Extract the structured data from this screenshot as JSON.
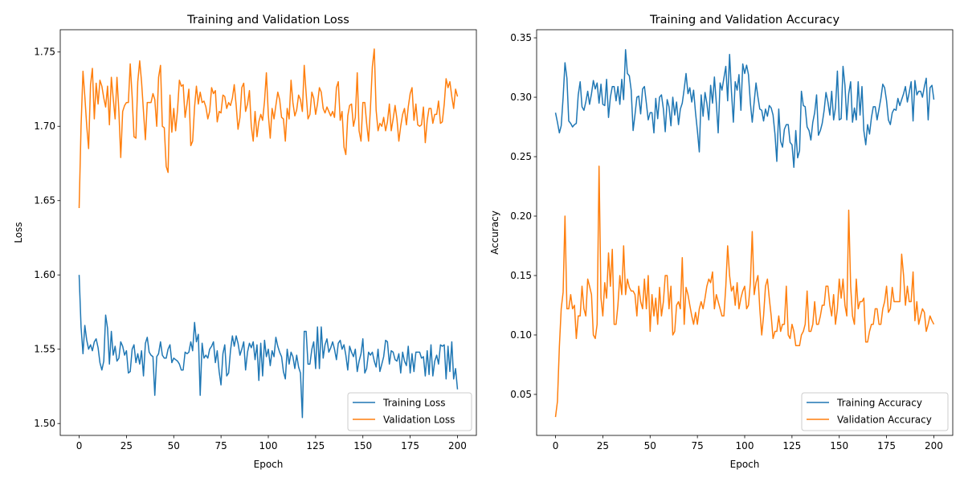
{
  "chart_data": [
    {
      "type": "line",
      "title": "Training and Validation Loss",
      "xlabel": "Epoch",
      "ylabel": "Loss",
      "xlim": [
        -10,
        210
      ],
      "ylim": [
        1.492,
        1.765
      ],
      "xticks": [
        0,
        25,
        50,
        75,
        100,
        125,
        150,
        175,
        200
      ],
      "yticks": [
        1.5,
        1.55,
        1.6,
        1.65,
        1.7,
        1.75
      ],
      "ytick_labels": [
        "1.50",
        "1.55",
        "1.60",
        "1.65",
        "1.70",
        "1.75"
      ],
      "legend": "lower-right",
      "grid": false,
      "series": [
        {
          "name": "Training Loss",
          "color": "#1f77b4",
          "values": [
            1.6,
            1.565,
            1.547,
            1.566,
            1.556,
            1.55,
            1.553,
            1.549,
            1.555,
            1.557,
            1.551,
            1.541,
            1.536,
            1.542,
            1.573,
            1.564,
            1.54,
            1.562,
            1.546,
            1.552,
            1.542,
            1.544,
            1.555,
            1.552,
            1.546,
            1.549,
            1.534,
            1.535,
            1.55,
            1.553,
            1.541,
            1.547,
            1.54,
            1.549,
            1.532,
            1.554,
            1.558,
            1.548,
            1.546,
            1.545,
            1.519,
            1.545,
            1.547,
            1.555,
            1.546,
            1.544,
            1.544,
            1.55,
            1.553,
            1.541,
            1.544,
            1.543,
            1.542,
            1.54,
            1.536,
            1.536,
            1.548,
            1.547,
            1.548,
            1.555,
            1.549,
            1.568,
            1.555,
            1.56,
            1.519,
            1.554,
            1.544,
            1.546,
            1.544,
            1.55,
            1.552,
            1.555,
            1.541,
            1.549,
            1.535,
            1.526,
            1.547,
            1.553,
            1.532,
            1.534,
            1.549,
            1.559,
            1.552,
            1.559,
            1.554,
            1.546,
            1.55,
            1.555,
            1.536,
            1.548,
            1.554,
            1.551,
            1.555,
            1.543,
            1.553,
            1.529,
            1.554,
            1.532,
            1.556,
            1.545,
            1.55,
            1.539,
            1.549,
            1.545,
            1.558,
            1.552,
            1.548,
            1.545,
            1.535,
            1.53,
            1.55,
            1.54,
            1.548,
            1.545,
            1.537,
            1.546,
            1.538,
            1.534,
            1.504,
            1.562,
            1.562,
            1.54,
            1.54,
            1.55,
            1.555,
            1.537,
            1.565,
            1.537,
            1.565,
            1.544,
            1.553,
            1.557,
            1.548,
            1.551,
            1.555,
            1.55,
            1.543,
            1.554,
            1.556,
            1.55,
            1.553,
            1.546,
            1.536,
            1.552,
            1.548,
            1.545,
            1.55,
            1.535,
            1.542,
            1.547,
            1.557,
            1.534,
            1.537,
            1.548,
            1.546,
            1.548,
            1.542,
            1.538,
            1.55,
            1.535,
            1.54,
            1.545,
            1.556,
            1.555,
            1.54,
            1.549,
            1.548,
            1.543,
            1.542,
            1.547,
            1.534,
            1.548,
            1.542,
            1.539,
            1.552,
            1.534,
            1.547,
            1.535,
            1.548,
            1.548,
            1.548,
            1.544,
            1.545,
            1.532,
            1.549,
            1.533,
            1.553,
            1.532,
            1.542,
            1.546,
            1.54,
            1.553,
            1.552,
            1.553,
            1.53,
            1.552,
            1.535,
            1.555,
            1.53,
            1.537,
            1.523
          ]
        },
        {
          "name": "Validation Loss",
          "color": "#ff7f0e",
          "values": [
            1.645,
            1.7,
            1.737,
            1.72,
            1.7,
            1.685,
            1.728,
            1.739,
            1.705,
            1.729,
            1.715,
            1.731,
            1.727,
            1.719,
            1.713,
            1.727,
            1.701,
            1.733,
            1.719,
            1.705,
            1.733,
            1.71,
            1.679,
            1.71,
            1.714,
            1.716,
            1.716,
            1.742,
            1.72,
            1.693,
            1.692,
            1.73,
            1.744,
            1.73,
            1.71,
            1.691,
            1.716,
            1.716,
            1.716,
            1.722,
            1.718,
            1.7,
            1.733,
            1.741,
            1.7,
            1.699,
            1.673,
            1.669,
            1.721,
            1.696,
            1.712,
            1.697,
            1.711,
            1.731,
            1.727,
            1.728,
            1.706,
            1.715,
            1.725,
            1.687,
            1.69,
            1.713,
            1.727,
            1.715,
            1.723,
            1.716,
            1.717,
            1.713,
            1.705,
            1.71,
            1.726,
            1.722,
            1.724,
            1.703,
            1.71,
            1.709,
            1.721,
            1.72,
            1.712,
            1.716,
            1.714,
            1.719,
            1.728,
            1.714,
            1.698,
            1.706,
            1.726,
            1.729,
            1.71,
            1.715,
            1.724,
            1.7,
            1.69,
            1.71,
            1.693,
            1.703,
            1.708,
            1.704,
            1.717,
            1.736,
            1.708,
            1.692,
            1.712,
            1.705,
            1.714,
            1.723,
            1.718,
            1.706,
            1.705,
            1.69,
            1.712,
            1.705,
            1.731,
            1.716,
            1.707,
            1.711,
            1.721,
            1.718,
            1.71,
            1.741,
            1.722,
            1.705,
            1.708,
            1.723,
            1.719,
            1.708,
            1.715,
            1.726,
            1.723,
            1.712,
            1.709,
            1.713,
            1.71,
            1.707,
            1.71,
            1.706,
            1.726,
            1.73,
            1.704,
            1.71,
            1.686,
            1.681,
            1.707,
            1.714,
            1.715,
            1.7,
            1.706,
            1.736,
            1.697,
            1.69,
            1.716,
            1.716,
            1.702,
            1.69,
            1.712,
            1.74,
            1.752,
            1.711,
            1.697,
            1.702,
            1.7,
            1.706,
            1.697,
            1.703,
            1.715,
            1.697,
            1.705,
            1.714,
            1.705,
            1.69,
            1.7,
            1.708,
            1.712,
            1.701,
            1.713,
            1.722,
            1.726,
            1.704,
            1.715,
            1.701,
            1.7,
            1.701,
            1.713,
            1.689,
            1.704,
            1.712,
            1.712,
            1.702,
            1.708,
            1.708,
            1.717,
            1.702,
            1.703,
            1.715,
            1.732,
            1.726,
            1.73,
            1.72,
            1.712,
            1.725,
            1.72
          ]
        }
      ]
    },
    {
      "type": "line",
      "title": "Training and Validation Accuracy",
      "xlabel": "Epoch",
      "ylabel": "Accuracy",
      "xlim": [
        -10,
        210
      ],
      "ylim": [
        0.0155,
        0.3568
      ],
      "xticks": [
        0,
        25,
        50,
        75,
        100,
        125,
        150,
        175,
        200
      ],
      "yticks": [
        0.05,
        0.1,
        0.15,
        0.2,
        0.25,
        0.3,
        0.35
      ],
      "ytick_labels": [
        "0.05",
        "0.10",
        "0.15",
        "0.20",
        "0.25",
        "0.30",
        "0.35"
      ],
      "legend": "lower-right",
      "grid": false,
      "series": [
        {
          "name": "Training Accuracy",
          "color": "#1f77b4",
          "values": [
            0.287,
            0.279,
            0.27,
            0.276,
            0.3,
            0.329,
            0.316,
            0.28,
            0.278,
            0.275,
            0.277,
            0.278,
            0.302,
            0.313,
            0.292,
            0.289,
            0.296,
            0.305,
            0.294,
            0.303,
            0.314,
            0.307,
            0.312,
            0.295,
            0.311,
            0.294,
            0.293,
            0.315,
            0.283,
            0.3,
            0.309,
            0.309,
            0.297,
            0.309,
            0.294,
            0.315,
            0.298,
            0.34,
            0.32,
            0.318,
            0.306,
            0.272,
            0.285,
            0.3,
            0.301,
            0.286,
            0.307,
            0.309,
            0.295,
            0.281,
            0.287,
            0.287,
            0.27,
            0.299,
            0.282,
            0.3,
            0.302,
            0.29,
            0.271,
            0.298,
            0.292,
            0.276,
            0.3,
            0.285,
            0.296,
            0.277,
            0.29,
            0.295,
            0.307,
            0.32,
            0.303,
            0.308,
            0.296,
            0.306,
            0.287,
            0.272,
            0.254,
            0.302,
            0.284,
            0.304,
            0.295,
            0.281,
            0.31,
            0.295,
            0.317,
            0.295,
            0.27,
            0.312,
            0.306,
            0.316,
            0.326,
            0.297,
            0.336,
            0.305,
            0.279,
            0.313,
            0.306,
            0.319,
            0.289,
            0.328,
            0.32,
            0.327,
            0.319,
            0.295,
            0.279,
            0.296,
            0.312,
            0.3,
            0.29,
            0.289,
            0.28,
            0.29,
            0.284,
            0.293,
            0.291,
            0.285,
            0.269,
            0.246,
            0.29,
            0.263,
            0.258,
            0.273,
            0.277,
            0.277,
            0.262,
            0.26,
            0.241,
            0.272,
            0.249,
            0.255,
            0.305,
            0.293,
            0.292,
            0.275,
            0.272,
            0.264,
            0.279,
            0.287,
            0.302,
            0.268,
            0.272,
            0.278,
            0.289,
            0.304,
            0.296,
            0.285,
            0.305,
            0.281,
            0.291,
            0.322,
            0.281,
            0.282,
            0.326,
            0.31,
            0.281,
            0.303,
            0.313,
            0.279,
            0.291,
            0.281,
            0.313,
            0.285,
            0.309,
            0.272,
            0.26,
            0.277,
            0.269,
            0.283,
            0.292,
            0.292,
            0.281,
            0.29,
            0.299,
            0.311,
            0.308,
            0.297,
            0.281,
            0.277,
            0.287,
            0.29,
            0.289,
            0.299,
            0.293,
            0.298,
            0.303,
            0.309,
            0.296,
            0.304,
            0.313,
            0.28,
            0.314,
            0.302,
            0.305,
            0.305,
            0.3,
            0.309,
            0.316,
            0.281,
            0.308,
            0.31,
            0.298
          ]
        },
        {
          "name": "Validation Accuracy",
          "color": "#ff7f0e",
          "values": [
            0.031,
            0.044,
            0.09,
            0.122,
            0.136,
            0.2,
            0.122,
            0.122,
            0.134,
            0.122,
            0.125,
            0.097,
            0.116,
            0.116,
            0.141,
            0.122,
            0.116,
            0.147,
            0.141,
            0.134,
            0.1,
            0.097,
            0.109,
            0.242,
            0.131,
            0.116,
            0.144,
            0.131,
            0.169,
            0.141,
            0.172,
            0.109,
            0.109,
            0.125,
            0.15,
            0.134,
            0.175,
            0.134,
            0.147,
            0.14,
            0.137,
            0.137,
            0.134,
            0.116,
            0.141,
            0.128,
            0.122,
            0.147,
            0.122,
            0.15,
            0.103,
            0.134,
            0.116,
            0.131,
            0.109,
            0.14,
            0.116,
            0.128,
            0.15,
            0.15,
            0.122,
            0.141,
            0.1,
            0.103,
            0.125,
            0.128,
            0.122,
            0.165,
            0.109,
            0.14,
            0.134,
            0.125,
            0.116,
            0.109,
            0.119,
            0.109,
            0.122,
            0.128,
            0.122,
            0.131,
            0.141,
            0.147,
            0.144,
            0.153,
            0.122,
            0.134,
            0.128,
            0.122,
            0.116,
            0.116,
            0.141,
            0.175,
            0.15,
            0.137,
            0.141,
            0.125,
            0.144,
            0.122,
            0.131,
            0.137,
            0.141,
            0.122,
            0.125,
            0.144,
            0.187,
            0.134,
            0.144,
            0.15,
            0.122,
            0.1,
            0.116,
            0.141,
            0.147,
            0.131,
            0.116,
            0.097,
            0.103,
            0.103,
            0.116,
            0.103,
            0.109,
            0.109,
            0.141,
            0.1,
            0.097,
            0.109,
            0.103,
            0.091,
            0.091,
            0.091,
            0.1,
            0.103,
            0.109,
            0.137,
            0.103,
            0.103,
            0.109,
            0.128,
            0.109,
            0.109,
            0.116,
            0.125,
            0.125,
            0.141,
            0.141,
            0.125,
            0.116,
            0.134,
            0.109,
            0.122,
            0.147,
            0.131,
            0.147,
            0.125,
            0.116,
            0.205,
            0.141,
            0.116,
            0.109,
            0.147,
            0.122,
            0.128,
            0.128,
            0.131,
            0.094,
            0.094,
            0.103,
            0.109,
            0.109,
            0.122,
            0.122,
            0.109,
            0.109,
            0.122,
            0.128,
            0.141,
            0.119,
            0.122,
            0.14,
            0.128,
            0.128,
            0.128,
            0.128,
            0.168,
            0.15,
            0.125,
            0.141,
            0.128,
            0.128,
            0.153,
            0.112,
            0.128,
            0.109,
            0.116,
            0.122,
            0.119,
            0.103,
            0.109,
            0.116,
            0.112,
            0.109
          ]
        }
      ]
    }
  ]
}
